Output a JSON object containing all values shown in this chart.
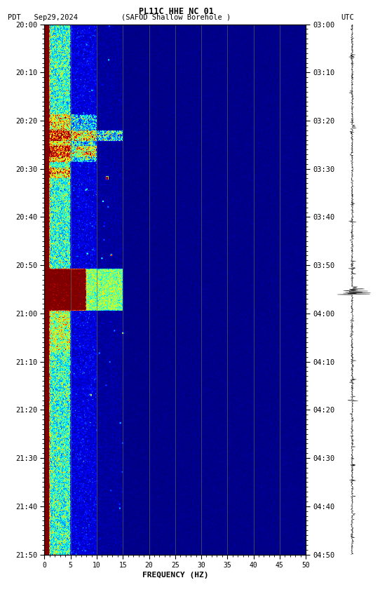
{
  "title_line1": "PL11C HHE NC 01",
  "title_line2_left": "PDT   Sep29,2024",
  "title_line2_center": "(SAFOD Shallow Borehole )",
  "title_line2_right": "UTC",
  "left_time_labels": [
    "20:00",
    "20:10",
    "20:20",
    "20:30",
    "20:40",
    "20:50",
    "21:00",
    "21:10",
    "21:20",
    "21:30",
    "21:40",
    "21:50"
  ],
  "right_time_labels": [
    "03:00",
    "03:10",
    "03:20",
    "03:30",
    "03:40",
    "03:50",
    "04:00",
    "04:10",
    "04:20",
    "04:30",
    "04:40",
    "04:50"
  ],
  "freq_ticks": [
    0,
    5,
    10,
    15,
    20,
    25,
    30,
    35,
    40,
    45,
    50
  ],
  "xlabel": "FREQUENCY (HZ)",
  "freq_min": 0,
  "freq_max": 50,
  "time_steps": 660,
  "freq_steps": 500,
  "background_color": "#ffffff",
  "spectrogram_bg": "#00008B",
  "colormap": "jet",
  "vgrid_freqs": [
    5,
    10,
    15,
    20,
    25,
    30,
    35,
    40,
    45
  ],
  "vgrid_color": "#606060",
  "figure_width": 5.52,
  "figure_height": 8.64
}
